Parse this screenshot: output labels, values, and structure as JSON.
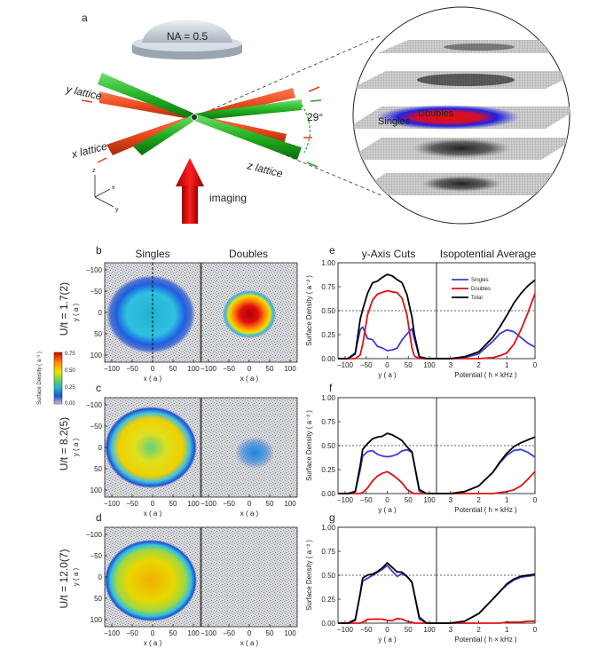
{
  "panel_letters": [
    "a",
    "b",
    "c",
    "d",
    "e",
    "f",
    "g"
  ],
  "schematic": {
    "objective_label": "NA = 0.5",
    "y_lattice": "y lattice",
    "x_lattice": "x lattice",
    "z_lattice": "z lattice",
    "angle": "29°",
    "imaging": "imaging",
    "axes": {
      "z": "z",
      "x": "x",
      "y": "y"
    },
    "singles": "Singles",
    "doubles": "Doubles"
  },
  "columns": {
    "singles": "Singles",
    "doubles": "Doubles",
    "cuts": "y-Axis Cuts",
    "iso": "Isopotential Average"
  },
  "rows": [
    {
      "label": "U/t = 1.7(2)"
    },
    {
      "label": "U/t = 8.2(5)"
    },
    {
      "label": "U/t = 12.0(7)"
    }
  ],
  "image_axes": {
    "x_label": "x ( a )",
    "y_label": "y ( a )",
    "x_ticks": [
      "−100",
      "−50",
      "0",
      "50",
      "100"
    ],
    "y_ticks": [
      "−100",
      "−50",
      "0",
      "50",
      "100"
    ]
  },
  "colorbar": {
    "title": "Surface Density ( a⁻² )",
    "ticks": [
      "0.75",
      "0.50",
      "0.25",
      "0.00"
    ],
    "colors": [
      "#d40000",
      "#ff8c00",
      "#f0e000",
      "#60d060",
      "#20b0d0",
      "#1e50d0",
      "#c8c8c8"
    ]
  },
  "legend": {
    "items": [
      {
        "name": "Singles",
        "color": "#3b3bdc"
      },
      {
        "name": "Doubles",
        "color": "#e01010"
      },
      {
        "name": "Total",
        "color": "#000000"
      }
    ]
  },
  "chart_data": [
    {
      "type": "line",
      "panel": "e",
      "title": "y-Axis Cuts",
      "xlabel": "y ( a )",
      "ylabel": "Surface Density ( a⁻² )",
      "xlim": [
        -100,
        100
      ],
      "ylim": [
        0,
        1.0
      ],
      "x_ticks": [
        "−100",
        "−50",
        "0",
        "50",
        "100"
      ],
      "y_ticks": [
        "0.00",
        "0.25",
        "0.50",
        "0.75",
        "1.00"
      ],
      "reference_line": 0.5,
      "x": [
        -100,
        -80,
        -65,
        -55,
        -50,
        -40,
        -30,
        -20,
        -10,
        0,
        10,
        20,
        30,
        40,
        50,
        55,
        65,
        80,
        100
      ],
      "series": [
        {
          "name": "Singles",
          "values": [
            0,
            0,
            0.05,
            0.3,
            0.34,
            0.22,
            0.2,
            0.12,
            0.1,
            0.08,
            0.1,
            0.12,
            0.2,
            0.25,
            0.3,
            0.2,
            0.02,
            0,
            0
          ]
        },
        {
          "name": "Doubles",
          "values": [
            0,
            0,
            0,
            0.05,
            0.15,
            0.45,
            0.6,
            0.67,
            0.7,
            0.72,
            0.7,
            0.68,
            0.62,
            0.45,
            0.12,
            0.04,
            0,
            0,
            0
          ]
        },
        {
          "name": "Total",
          "values": [
            0,
            0,
            0.05,
            0.4,
            0.5,
            0.68,
            0.8,
            0.82,
            0.85,
            0.87,
            0.85,
            0.82,
            0.8,
            0.68,
            0.44,
            0.25,
            0.02,
            0,
            0
          ]
        }
      ]
    },
    {
      "type": "line",
      "panel": "e",
      "title": "Isopotential Average",
      "xlabel": "Potential ( h × kHz )",
      "ylabel": "",
      "xlim": [
        3.5,
        0
      ],
      "ylim": [
        0,
        1.0
      ],
      "x_ticks": [
        "3",
        "2",
        "1",
        "0"
      ],
      "reference_line": 0.5,
      "x": [
        3.5,
        3,
        2.5,
        2,
        1.5,
        1.25,
        1,
        0.75,
        0.5,
        0.25,
        0
      ],
      "series": [
        {
          "name": "Singles",
          "values": [
            0,
            0,
            0.01,
            0.05,
            0.18,
            0.26,
            0.3,
            0.28,
            0.22,
            0.16,
            0.12
          ]
        },
        {
          "name": "Doubles",
          "values": [
            0,
            0,
            0,
            0,
            0.01,
            0.03,
            0.06,
            0.15,
            0.3,
            0.48,
            0.68
          ]
        },
        {
          "name": "Total",
          "values": [
            0,
            0,
            0.02,
            0.07,
            0.22,
            0.33,
            0.45,
            0.58,
            0.68,
            0.76,
            0.82
          ]
        }
      ]
    },
    {
      "type": "line",
      "panel": "f",
      "title": "y-Axis Cuts",
      "xlabel": "y ( a )",
      "ylabel": "Surface Density ( a⁻² )",
      "xlim": [
        -100,
        100
      ],
      "ylim": [
        0,
        1.0
      ],
      "x_ticks": [
        "−100",
        "−50",
        "0",
        "50",
        "100"
      ],
      "y_ticks": [
        "0.00",
        "0.25",
        "0.50",
        "0.75",
        "1.00"
      ],
      "reference_line": 0.5,
      "x": [
        -100,
        -80,
        -65,
        -55,
        -50,
        -40,
        -30,
        -20,
        -10,
        0,
        10,
        20,
        30,
        40,
        50,
        55,
        65,
        80,
        100
      ],
      "series": [
        {
          "name": "Singles",
          "values": [
            0,
            0,
            0.02,
            0.25,
            0.4,
            0.45,
            0.45,
            0.4,
            0.38,
            0.38,
            0.4,
            0.42,
            0.45,
            0.45,
            0.42,
            0.3,
            0.03,
            0,
            0
          ]
        },
        {
          "name": "Doubles",
          "values": [
            0,
            0,
            0,
            0,
            0.01,
            0.05,
            0.12,
            0.18,
            0.22,
            0.24,
            0.2,
            0.15,
            0.1,
            0.04,
            0.01,
            0,
            0,
            0,
            0
          ]
        },
        {
          "name": "Total",
          "values": [
            0,
            0,
            0.02,
            0.28,
            0.45,
            0.52,
            0.58,
            0.6,
            0.6,
            0.62,
            0.6,
            0.58,
            0.56,
            0.5,
            0.44,
            0.3,
            0.03,
            0,
            0
          ]
        }
      ]
    },
    {
      "type": "line",
      "panel": "f",
      "title": "Isopotential Average",
      "xlabel": "Potential ( h × kHz )",
      "ylabel": "",
      "xlim": [
        3.5,
        0
      ],
      "ylim": [
        0,
        1.0
      ],
      "x_ticks": [
        "3",
        "2",
        "1",
        "0"
      ],
      "reference_line": 0.5,
      "x": [
        3.5,
        3,
        2.5,
        2,
        1.5,
        1.25,
        1,
        0.75,
        0.5,
        0.25,
        0
      ],
      "series": [
        {
          "name": "Singles",
          "values": [
            0,
            0,
            0.02,
            0.08,
            0.22,
            0.32,
            0.4,
            0.45,
            0.46,
            0.43,
            0.38
          ]
        },
        {
          "name": "Doubles",
          "values": [
            0,
            0,
            0,
            0,
            0,
            0.01,
            0.02,
            0.04,
            0.08,
            0.15,
            0.23
          ]
        },
        {
          "name": "Total",
          "values": [
            0,
            0,
            0.02,
            0.08,
            0.22,
            0.33,
            0.42,
            0.49,
            0.53,
            0.56,
            0.59
          ]
        }
      ]
    },
    {
      "type": "line",
      "panel": "g",
      "title": "y-Axis Cuts",
      "xlabel": "y ( a )",
      "ylabel": "Surface Density ( a⁻² )",
      "xlim": [
        -100,
        100
      ],
      "ylim": [
        0,
        1.0
      ],
      "x_ticks": [
        "−100",
        "−50",
        "0",
        "50",
        "100"
      ],
      "y_ticks": [
        "0.00",
        "0.25",
        "0.50",
        "0.75",
        "1.00"
      ],
      "reference_line": 0.5,
      "x": [
        -100,
        -80,
        -65,
        -55,
        -50,
        -40,
        -30,
        -20,
        -10,
        0,
        10,
        20,
        30,
        40,
        50,
        55,
        65,
        80,
        100
      ],
      "series": [
        {
          "name": "Singles",
          "values": [
            0,
            0,
            0.03,
            0.3,
            0.45,
            0.48,
            0.5,
            0.52,
            0.55,
            0.6,
            0.55,
            0.5,
            0.52,
            0.48,
            0.42,
            0.3,
            0.05,
            0,
            0
          ]
        },
        {
          "name": "Doubles",
          "values": [
            0,
            0,
            0,
            0,
            0.01,
            0.03,
            0.03,
            0.04,
            0.05,
            0.04,
            0.03,
            0.04,
            0.03,
            0.02,
            0.01,
            0,
            0,
            0,
            0
          ]
        },
        {
          "name": "Total",
          "values": [
            0,
            0,
            0.03,
            0.3,
            0.46,
            0.5,
            0.52,
            0.55,
            0.58,
            0.62,
            0.57,
            0.53,
            0.54,
            0.5,
            0.43,
            0.3,
            0.05,
            0,
            0
          ]
        }
      ]
    },
    {
      "type": "line",
      "panel": "g",
      "title": "Isopotential Average",
      "xlabel": "Potential ( h × kHz )",
      "ylabel": "",
      "xlim": [
        3.5,
        0
      ],
      "ylim": [
        0,
        1.0
      ],
      "x_ticks": [
        "3",
        "2",
        "1",
        "0"
      ],
      "reference_line": 0.5,
      "x": [
        3.5,
        3,
        2.5,
        2,
        1.5,
        1.25,
        1,
        0.75,
        0.5,
        0.25,
        0
      ],
      "series": [
        {
          "name": "Singles",
          "values": [
            0,
            0,
            0.02,
            0.1,
            0.25,
            0.33,
            0.4,
            0.45,
            0.48,
            0.49,
            0.5
          ]
        },
        {
          "name": "Doubles",
          "values": [
            0,
            0,
            0,
            0,
            0,
            0,
            0.01,
            0.01,
            0.01,
            0.02,
            0.02
          ]
        },
        {
          "name": "Total",
          "values": [
            0,
            0,
            0.02,
            0.1,
            0.25,
            0.33,
            0.41,
            0.46,
            0.49,
            0.5,
            0.51
          ]
        }
      ]
    }
  ]
}
